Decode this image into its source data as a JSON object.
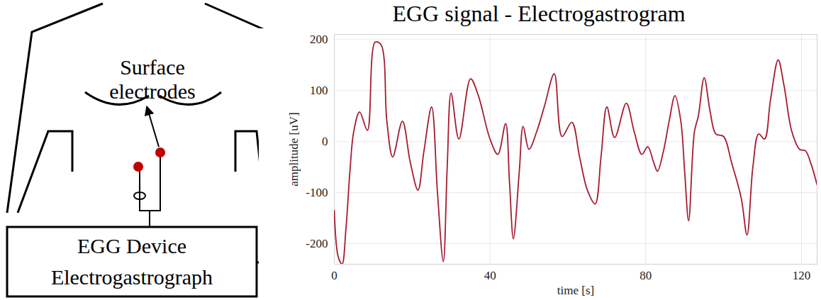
{
  "diagram": {
    "electrode_label": [
      "Surface",
      "electrodes"
    ],
    "device_label": [
      "EGG Device",
      "Electrogastrograph"
    ]
  },
  "chart_data": {
    "type": "line",
    "title": "EGG signal - Electrogastrogram",
    "x_label": "time [s]",
    "y_label": "amplitude [uV]",
    "x": [
      0,
      1,
      2,
      3,
      4,
      5,
      6.5,
      8.5,
      10.5,
      12,
      13.5,
      15,
      17.5,
      19.5,
      21.5,
      23,
      25,
      26.5,
      28,
      29,
      30,
      32,
      35,
      37,
      40,
      42,
      44,
      45,
      46,
      47.5,
      48.5,
      50,
      52,
      54,
      56.5,
      58.5,
      61,
      63,
      65,
      67,
      68.5,
      70,
      72,
      75,
      77,
      79,
      80.5,
      82,
      83,
      84.5,
      86,
      87.5,
      89,
      90,
      91,
      92.5,
      93.5,
      95,
      96.5,
      98,
      100,
      102,
      104.5,
      106,
      107.5,
      109,
      110.5,
      112,
      114,
      115.5,
      117.5,
      119.5,
      121,
      122.5,
      124
    ],
    "series": [
      {
        "color": "#a51c30",
        "values": [
          -135,
          -225,
          -240,
          -170,
          -60,
          20,
          58,
          22,
          195,
          190,
          40,
          -30,
          40,
          -40,
          -95,
          -20,
          68,
          -100,
          -235,
          -50,
          95,
          5,
          123,
          90,
          5,
          -25,
          35,
          -80,
          -190,
          -60,
          30,
          -15,
          20,
          70,
          133,
          10,
          38,
          -30,
          -95,
          -122,
          -30,
          68,
          8,
          75,
          20,
          -25,
          -10,
          -40,
          -58,
          -20,
          40,
          90,
          40,
          -60,
          -155,
          20,
          50,
          125,
          60,
          15,
          10,
          -40,
          -110,
          -183,
          -50,
          15,
          5,
          80,
          160,
          110,
          20,
          -15,
          -18,
          -45,
          -85
        ]
      }
    ],
    "xlim": [
      0,
      124
    ],
    "ylim": [
      -240,
      210
    ],
    "xticks": [
      0,
      40,
      80,
      120
    ],
    "yticks": [
      -200,
      -100,
      0,
      100,
      200
    ],
    "grid": true
  }
}
